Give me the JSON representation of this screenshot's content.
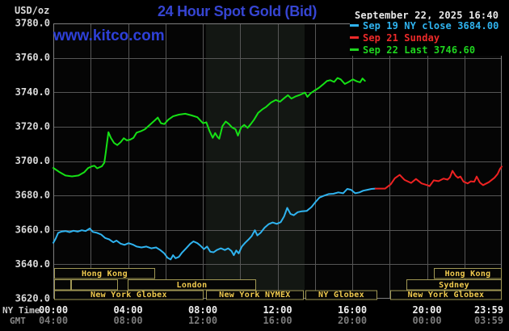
{
  "header": {
    "units_label": "USD/oz",
    "title": "24 Hour Spot Gold (Bid)",
    "datetime": "September 22, 2025 16:40"
  },
  "watermark": {
    "text": "www.kitco.com"
  },
  "legend": {
    "items": [
      {
        "color": "#2fb3ef",
        "label": "Sep 19 NY close 3684.00"
      },
      {
        "color": "#ee2a2a",
        "label": "Sep 21 Sunday"
      },
      {
        "color": "#1fd51f",
        "label": "Sep 22 Last 3746.60"
      }
    ]
  },
  "y_axis": {
    "ticks": [
      3780,
      3760,
      3740,
      3720,
      3700,
      3680,
      3660,
      3640,
      3620
    ]
  },
  "x_axis": {
    "row1_label": "NY Time",
    "row2_label": "GMT",
    "hours": [
      0,
      4,
      8,
      12,
      16,
      20,
      24
    ],
    "row1_ticks": [
      "00:00",
      "04:00",
      "08:00",
      "12:00",
      "16:00",
      "20:00",
      "23:59"
    ],
    "row2_ticks": [
      "04:00",
      "08:00",
      "12:00",
      "16:00",
      "20:00",
      "00:00",
      "03:59"
    ]
  },
  "sessions": {
    "rows": [
      {
        "boxes": [
          {
            "label": "Hong Kong",
            "start": 0.04,
            "end": 5.45
          },
          {
            "label": "Hong Kong",
            "start": 20.37,
            "end": 24
          }
        ]
      },
      {
        "boxes": [
          {
            "label": "",
            "start": 0.04,
            "end": 0.95
          },
          {
            "label": "",
            "start": 0.95,
            "end": 3.46
          },
          {
            "label": "London",
            "start": 3.98,
            "end": 10.85
          },
          {
            "label": "Sydney",
            "start": 18.9,
            "end": 24
          }
        ]
      },
      {
        "boxes": [
          {
            "label": "New York Globex",
            "start": 0.04,
            "end": 8.04
          },
          {
            "label": "New York NYMEX",
            "start": 8.17,
            "end": 13.4
          },
          {
            "label": "NY Globex",
            "start": 13.49,
            "end": 17.34
          },
          {
            "label": "New York Globex",
            "start": 18.03,
            "end": 24
          }
        ]
      }
    ]
  },
  "chart_data": {
    "type": "line",
    "title": "24 Hour Spot Gold (Bid)",
    "xlabel": "NY Time (hours 0-24)",
    "ylabel": "USD/oz",
    "xlim": [
      0,
      24
    ],
    "ylim": [
      3620,
      3780
    ],
    "grid": true,
    "highlight_band": {
      "start_hour": 8.17,
      "end_hour": 13.45,
      "note": "NYMEX floor session"
    },
    "series": [
      {
        "name": "Sep 19 NY close 3684.00",
        "color": "#2fb3ef",
        "points": [
          [
            0,
            3652.5
          ],
          [
            0.13,
            3655
          ],
          [
            0.26,
            3658.3
          ],
          [
            0.43,
            3659
          ],
          [
            0.65,
            3659.3
          ],
          [
            0.87,
            3658.7
          ],
          [
            1.08,
            3659.5
          ],
          [
            1.3,
            3659
          ],
          [
            1.52,
            3659.8
          ],
          [
            1.73,
            3659.3
          ],
          [
            1.95,
            3660.8
          ],
          [
            2.12,
            3658.8
          ],
          [
            2.34,
            3658.3
          ],
          [
            2.56,
            3657.3
          ],
          [
            2.77,
            3655.3
          ],
          [
            2.99,
            3654.5
          ],
          [
            3.21,
            3652.8
          ],
          [
            3.38,
            3653.8
          ],
          [
            3.6,
            3652
          ],
          [
            3.81,
            3651.3
          ],
          [
            4.03,
            3652.3
          ],
          [
            4.25,
            3651.5
          ],
          [
            4.46,
            3650.3
          ],
          [
            4.72,
            3649.8
          ],
          [
            4.98,
            3650.3
          ],
          [
            5.24,
            3649.3
          ],
          [
            5.5,
            3649.8
          ],
          [
            5.72,
            3648.3
          ],
          [
            5.94,
            3646.3
          ],
          [
            6.11,
            3643.8
          ],
          [
            6.28,
            3642.8
          ],
          [
            6.41,
            3645.3
          ],
          [
            6.54,
            3643.5
          ],
          [
            6.72,
            3644.3
          ],
          [
            6.89,
            3646.8
          ],
          [
            7.11,
            3649.3
          ],
          [
            7.32,
            3651.8
          ],
          [
            7.5,
            3653.3
          ],
          [
            7.71,
            3652.3
          ],
          [
            7.88,
            3650.8
          ],
          [
            8.06,
            3648.8
          ],
          [
            8.23,
            3650.3
          ],
          [
            8.4,
            3647.3
          ],
          [
            8.58,
            3647
          ],
          [
            8.75,
            3648.3
          ],
          [
            8.97,
            3649.3
          ],
          [
            9.18,
            3648.3
          ],
          [
            9.36,
            3649.3
          ],
          [
            9.53,
            3647.8
          ],
          [
            9.66,
            3645.3
          ],
          [
            9.79,
            3648
          ],
          [
            9.92,
            3646.3
          ],
          [
            10.09,
            3650.3
          ],
          [
            10.27,
            3652.5
          ],
          [
            10.44,
            3654.3
          ],
          [
            10.61,
            3656.3
          ],
          [
            10.79,
            3659.8
          ],
          [
            10.92,
            3656.8
          ],
          [
            11.09,
            3658.3
          ],
          [
            11.31,
            3661.3
          ],
          [
            11.52,
            3663.3
          ],
          [
            11.74,
            3664.3
          ],
          [
            11.96,
            3663.5
          ],
          [
            12.17,
            3664.5
          ],
          [
            12.35,
            3667.8
          ],
          [
            12.52,
            3672.8
          ],
          [
            12.69,
            3669.3
          ],
          [
            12.87,
            3668.5
          ],
          [
            13.08,
            3670.3
          ],
          [
            13.3,
            3670.8
          ],
          [
            13.56,
            3671
          ],
          [
            13.82,
            3673.3
          ],
          [
            14.04,
            3676.3
          ],
          [
            14.25,
            3678.8
          ],
          [
            14.47,
            3679.8
          ],
          [
            14.73,
            3680.8
          ],
          [
            14.99,
            3681
          ],
          [
            15.25,
            3681.8
          ],
          [
            15.51,
            3681.3
          ],
          [
            15.73,
            3683.8
          ],
          [
            15.94,
            3683.3
          ],
          [
            16.16,
            3681.3
          ],
          [
            16.38,
            3681.8
          ],
          [
            16.59,
            3682.8
          ],
          [
            16.81,
            3683.3
          ],
          [
            17.03,
            3683.8
          ],
          [
            17.24,
            3684
          ]
        ]
      },
      {
        "name": "Sep 21 Sunday",
        "color": "#ee2222",
        "points": [
          [
            17.24,
            3684
          ],
          [
            17.76,
            3684
          ],
          [
            18.06,
            3686.5
          ],
          [
            18.28,
            3690
          ],
          [
            18.54,
            3692
          ],
          [
            18.8,
            3689
          ],
          [
            19.15,
            3687.3
          ],
          [
            19.41,
            3689.6
          ],
          [
            19.71,
            3687
          ],
          [
            20.01,
            3686
          ],
          [
            20.14,
            3685.4
          ],
          [
            20.36,
            3688.8
          ],
          [
            20.62,
            3688.3
          ],
          [
            20.88,
            3689.8
          ],
          [
            21.1,
            3689.2
          ],
          [
            21.23,
            3690.5
          ],
          [
            21.36,
            3694.3
          ],
          [
            21.53,
            3691.5
          ],
          [
            21.66,
            3690.3
          ],
          [
            21.79,
            3691
          ],
          [
            21.96,
            3688
          ],
          [
            22.18,
            3687
          ],
          [
            22.35,
            3688.2
          ],
          [
            22.53,
            3688
          ],
          [
            22.66,
            3691
          ],
          [
            22.83,
            3687.5
          ],
          [
            23.0,
            3686
          ],
          [
            23.31,
            3687.7
          ],
          [
            23.61,
            3690.3
          ],
          [
            23.78,
            3692.5
          ],
          [
            23.91,
            3695.5
          ],
          [
            24.0,
            3696.8
          ]
        ]
      },
      {
        "name": "Sep 22 Last 3746.60",
        "color": "#15e015",
        "points": [
          [
            0,
            3696
          ],
          [
            0.3,
            3693.8
          ],
          [
            0.65,
            3691.6
          ],
          [
            1.0,
            3691.1
          ],
          [
            1.35,
            3691.6
          ],
          [
            1.65,
            3693.5
          ],
          [
            1.86,
            3695.9
          ],
          [
            2.08,
            3697
          ],
          [
            2.2,
            3697.3
          ],
          [
            2.35,
            3695.8
          ],
          [
            2.6,
            3697
          ],
          [
            2.73,
            3699
          ],
          [
            2.82,
            3706
          ],
          [
            2.95,
            3716.8
          ],
          [
            3.08,
            3713.5
          ],
          [
            3.25,
            3710.5
          ],
          [
            3.42,
            3709.3
          ],
          [
            3.6,
            3711
          ],
          [
            3.77,
            3713.3
          ],
          [
            3.94,
            3712
          ],
          [
            4.12,
            3712.5
          ],
          [
            4.29,
            3713.5
          ],
          [
            4.46,
            3716.5
          ],
          [
            4.68,
            3717.3
          ],
          [
            4.9,
            3718.5
          ],
          [
            5.16,
            3721
          ],
          [
            5.42,
            3723.5
          ],
          [
            5.59,
            3725.3
          ],
          [
            5.76,
            3722
          ],
          [
            5.94,
            3721.5
          ],
          [
            6.15,
            3724
          ],
          [
            6.41,
            3726
          ],
          [
            6.72,
            3727
          ],
          [
            7.06,
            3727.5
          ],
          [
            7.41,
            3726.5
          ],
          [
            7.71,
            3725.5
          ],
          [
            7.88,
            3723.5
          ],
          [
            8.01,
            3722
          ],
          [
            8.19,
            3722.5
          ],
          [
            8.36,
            3717.5
          ],
          [
            8.53,
            3713.5
          ],
          [
            8.66,
            3716.3
          ],
          [
            8.79,
            3714
          ],
          [
            8.88,
            3713
          ],
          [
            9.05,
            3720.3
          ],
          [
            9.23,
            3723
          ],
          [
            9.4,
            3721.5
          ],
          [
            9.57,
            3719.5
          ],
          [
            9.75,
            3718.5
          ],
          [
            9.88,
            3714.8
          ],
          [
            10.05,
            3719.5
          ],
          [
            10.22,
            3721
          ],
          [
            10.4,
            3719.3
          ],
          [
            10.57,
            3721.5
          ],
          [
            10.74,
            3724
          ],
          [
            10.96,
            3728
          ],
          [
            11.18,
            3730
          ],
          [
            11.39,
            3731.5
          ],
          [
            11.65,
            3734
          ],
          [
            11.91,
            3735.5
          ],
          [
            12.13,
            3734.5
          ],
          [
            12.35,
            3736.5
          ],
          [
            12.56,
            3738.3
          ],
          [
            12.74,
            3736.3
          ],
          [
            12.95,
            3737.5
          ],
          [
            13.21,
            3738.5
          ],
          [
            13.47,
            3739.8
          ],
          [
            13.6,
            3737.3
          ],
          [
            13.78,
            3739.5
          ],
          [
            13.99,
            3741
          ],
          [
            14.21,
            3742.5
          ],
          [
            14.43,
            3744.5
          ],
          [
            14.64,
            3746.5
          ],
          [
            14.82,
            3747
          ],
          [
            15.03,
            3746
          ],
          [
            15.21,
            3748.3
          ],
          [
            15.38,
            3747.5
          ],
          [
            15.6,
            3744.8
          ],
          [
            15.81,
            3746
          ],
          [
            16.03,
            3747.5
          ],
          [
            16.25,
            3746.3
          ],
          [
            16.42,
            3745.8
          ],
          [
            16.55,
            3748
          ],
          [
            16.68,
            3746.6
          ]
        ]
      }
    ]
  },
  "colors": {
    "background": "#000000",
    "plot_background": "#050505",
    "band": "#131713",
    "grid": "#565656",
    "plot_border": "#7e7e7e",
    "session_border": "#a09754",
    "session_text": "#f0ca4e",
    "axis_text": "#d9d9d9",
    "gmt_text": "#7b7b7b",
    "title_blue": "#3645d2"
  }
}
